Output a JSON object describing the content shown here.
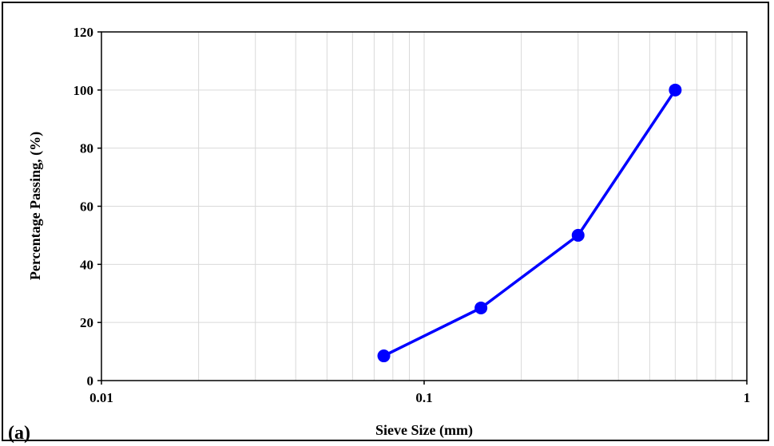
{
  "panel_label": "(a)",
  "chart_data": {
    "type": "line",
    "xlabel": "Sieve Size (mm)",
    "ylabel": "Percentage Passing, (%)",
    "x_scale": "log",
    "xlim": [
      0.01,
      1
    ],
    "ylim": [
      0,
      120
    ],
    "x_ticks": [
      0.01,
      0.1,
      1
    ],
    "x_tick_labels": [
      "0.01",
      "0.1",
      "1"
    ],
    "y_ticks": [
      0,
      20,
      40,
      60,
      80,
      100,
      120
    ],
    "y_tick_labels": [
      "0",
      "20",
      "40",
      "60",
      "80",
      "100",
      "120"
    ],
    "grid": true,
    "legend": "none",
    "series": [
      {
        "color": "#0000ff",
        "x": [
          0.075,
          0.15,
          0.3,
          0.6
        ],
        "y": [
          8.5,
          25,
          50,
          100
        ]
      }
    ]
  }
}
